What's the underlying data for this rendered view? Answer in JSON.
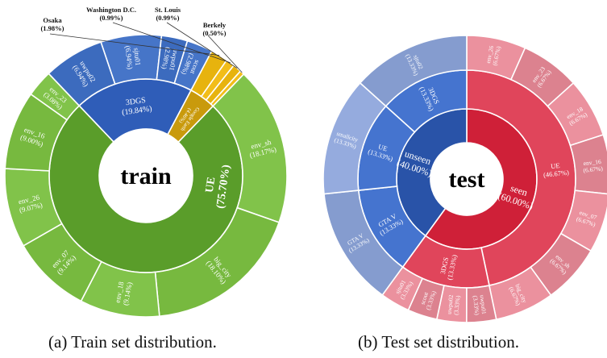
{
  "captions": [
    "(a) Train set distribution.",
    "(b) Test set distribution."
  ],
  "chart_data": [
    {
      "type": "sunburst",
      "center_label": "train",
      "inner": [
        {
          "label": "UE",
          "pct": "75.70%",
          "value": 75.7,
          "color": "#5a9d2a"
        },
        {
          "label": "3DGS",
          "pct": "19.84%",
          "value": 19.84,
          "color": "#2f5db8"
        },
        {
          "label": "Google Earth",
          "pct": "4.46%",
          "value": 4.46,
          "color": "#c99a0c"
        }
      ],
      "outer": [
        {
          "parent": "UE",
          "label": "env_sh",
          "pct": "18.17%",
          "value": 18.17
        },
        {
          "parent": "UE",
          "label": "big_city",
          "pct": "18.10%",
          "value": 18.1
        },
        {
          "parent": "UE",
          "label": "env_18",
          "pct": "9.14%",
          "value": 9.14
        },
        {
          "parent": "UE",
          "label": "env_07",
          "pct": "9.14%",
          "value": 9.14
        },
        {
          "parent": "UE",
          "label": "env_26",
          "pct": "9.07%",
          "value": 9.07
        },
        {
          "parent": "UE",
          "label": "env_16",
          "pct": "9.00%",
          "value": 9.0
        },
        {
          "parent": "UE",
          "label": "env_23",
          "pct": "3.08%",
          "value": 3.08
        },
        {
          "parent": "3DGS",
          "label": "uwpu02",
          "pct": "6.94%",
          "value": 6.94
        },
        {
          "parent": "3DGS",
          "label": "sjtu01",
          "pct": "6.94%",
          "value": 6.94
        },
        {
          "parent": "3DGS",
          "label": "uwpu01",
          "pct": "2.98%",
          "value": 2.98
        },
        {
          "parent": "3DGS",
          "label": "scout",
          "pct": "2.98%",
          "value": 2.98
        },
        {
          "parent": "Google Earth",
          "label": "Osaka",
          "pct": "1.98%",
          "value": 1.98
        },
        {
          "parent": "Google Earth",
          "label": "Washington D.C.",
          "pct": "0.99%",
          "value": 0.99
        },
        {
          "parent": "Google Earth",
          "label": "St. Louis",
          "pct": "0.99%",
          "value": 0.99
        },
        {
          "parent": "Google Earth",
          "label": "Berkely",
          "pct": "0.50%",
          "value": 0.5
        }
      ]
    },
    {
      "type": "sunburst",
      "center_label": "test",
      "top": [
        {
          "label": "seen",
          "pct": "60.00%",
          "value": 60.0,
          "color": "#cf2038"
        },
        {
          "label": "unseen",
          "pct": "40.00%",
          "value": 40.0,
          "color": "#2953a8"
        }
      ],
      "middle": [
        {
          "parent": "seen",
          "label": "UE",
          "pct": "46.67%",
          "value": 46.67,
          "color": "#e0455b"
        },
        {
          "parent": "seen",
          "label": "3DGS",
          "pct": "13.33%",
          "value": 13.33,
          "color": "#e0455b"
        },
        {
          "parent": "unseen",
          "label": "GTA V",
          "pct": "13.33%",
          "value": 13.33,
          "color": "#4574cf"
        },
        {
          "parent": "unseen",
          "label": "UE",
          "pct": "13.33%",
          "value": 13.33,
          "color": "#4574cf"
        },
        {
          "parent": "unseen",
          "label": "3DGS",
          "pct": "13.33%",
          "value": 13.33,
          "color": "#4574cf"
        }
      ],
      "outer": [
        {
          "parent": "UE",
          "label": "env_26",
          "pct": "6.67%",
          "value": 6.67
        },
        {
          "parent": "UE",
          "label": "env_23",
          "pct": "6.67%",
          "value": 6.67
        },
        {
          "parent": "UE",
          "label": "env_18",
          "pct": "6.67%",
          "value": 6.67
        },
        {
          "parent": "UE",
          "label": "env_16",
          "pct": "6.67%",
          "value": 6.67
        },
        {
          "parent": "UE",
          "label": "env_07",
          "pct": "6.67%",
          "value": 6.67
        },
        {
          "parent": "UE",
          "label": "env_sh",
          "pct": "6.67%",
          "value": 6.67
        },
        {
          "parent": "UE",
          "label": "big_city",
          "pct": "6.67%",
          "value": 6.67
        },
        {
          "parent": "3DGS",
          "label": "uwpu01",
          "pct": "3.33%",
          "value": 3.33
        },
        {
          "parent": "3DGS",
          "label": "uwpu02",
          "pct": "3.33%",
          "value": 3.33
        },
        {
          "parent": "3DGS",
          "label": "scout",
          "pct": "3.33%",
          "value": 3.33
        },
        {
          "parent": "3DGS",
          "label": "sjtu01",
          "pct": "3.33%",
          "value": 3.33
        },
        {
          "parent": "GTA V",
          "label": "GTA V",
          "pct": "13.33%",
          "value": 13.33
        },
        {
          "parent": "UE",
          "label": "smallcity",
          "pct": "13.33%",
          "value": 13.33
        },
        {
          "parent": "3DGS",
          "label": "sjtu02",
          "pct": "13.33%",
          "value": 13.33
        }
      ]
    }
  ]
}
